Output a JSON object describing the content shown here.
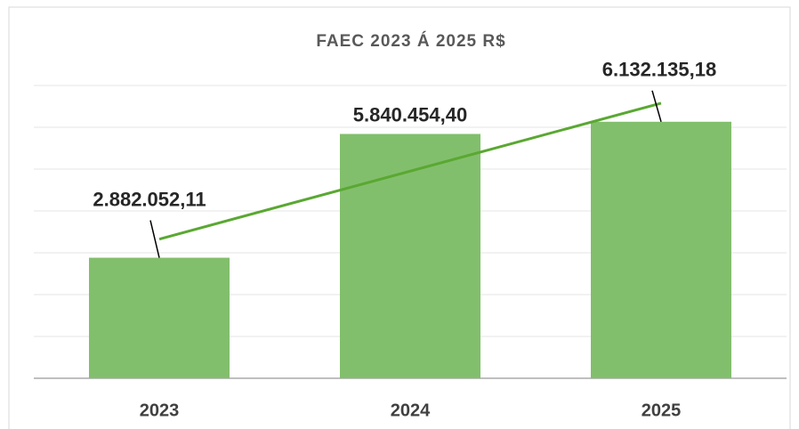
{
  "chart_data": {
    "type": "bar",
    "title": "FAEC 2023 Á 2025 R$",
    "categories": [
      "2023",
      "2024",
      "2025"
    ],
    "values": [
      2882052.11,
      5840454.4,
      6132135.18
    ],
    "value_labels": [
      "2.882.052,11",
      "5.840.454,40",
      "6.132.135,18"
    ],
    "color": "#82bf6c",
    "trendline_color": "#5aa832",
    "ylim": [
      0,
      7000000
    ],
    "yticks": [
      0,
      1000000,
      2000000,
      3000000,
      4000000,
      5000000,
      6000000,
      7000000
    ],
    "grid": true,
    "trendline": true
  }
}
